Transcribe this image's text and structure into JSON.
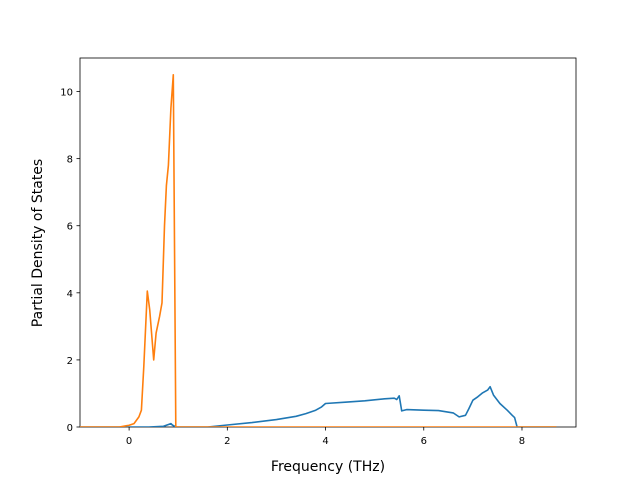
{
  "chart_data": {
    "type": "line",
    "title": "",
    "xlabel": "Frequency (THz)",
    "ylabel": "Partial Density of States",
    "xlim": [
      -1.0,
      9.1
    ],
    "ylim": [
      0,
      11
    ],
    "xticks": [
      0,
      2,
      4,
      6,
      8
    ],
    "yticks": [
      0,
      2,
      4,
      6,
      8,
      10
    ],
    "grid": false,
    "legend": "none",
    "series": [
      {
        "color": "#1f77b4",
        "points": [
          [
            -1.0,
            0.0
          ],
          [
            0.0,
            0.0
          ],
          [
            0.4,
            0.0
          ],
          [
            0.7,
            0.02
          ],
          [
            0.85,
            0.1
          ],
          [
            0.88,
            0.06
          ],
          [
            0.95,
            0.0
          ],
          [
            1.6,
            0.0
          ],
          [
            1.8,
            0.03
          ],
          [
            2.0,
            0.06
          ],
          [
            2.5,
            0.13
          ],
          [
            3.0,
            0.22
          ],
          [
            3.4,
            0.32
          ],
          [
            3.6,
            0.4
          ],
          [
            3.8,
            0.5
          ],
          [
            3.92,
            0.6
          ],
          [
            4.0,
            0.7
          ],
          [
            4.4,
            0.74
          ],
          [
            4.8,
            0.78
          ],
          [
            5.2,
            0.84
          ],
          [
            5.4,
            0.86
          ],
          [
            5.45,
            0.82
          ],
          [
            5.5,
            0.93
          ],
          [
            5.55,
            0.48
          ],
          [
            5.65,
            0.52
          ],
          [
            6.0,
            0.5
          ],
          [
            6.3,
            0.49
          ],
          [
            6.6,
            0.42
          ],
          [
            6.72,
            0.3
          ],
          [
            6.85,
            0.35
          ],
          [
            6.92,
            0.55
          ],
          [
            7.0,
            0.8
          ],
          [
            7.1,
            0.9
          ],
          [
            7.2,
            1.02
          ],
          [
            7.3,
            1.1
          ],
          [
            7.35,
            1.2
          ],
          [
            7.42,
            0.95
          ],
          [
            7.55,
            0.7
          ],
          [
            7.7,
            0.5
          ],
          [
            7.8,
            0.35
          ],
          [
            7.85,
            0.28
          ],
          [
            7.9,
            0.0
          ],
          [
            8.7,
            0.0
          ]
        ]
      },
      {
        "color": "#ff7f0e",
        "points": [
          [
            -1.0,
            0.0
          ],
          [
            -0.2,
            0.0
          ],
          [
            0.0,
            0.05
          ],
          [
            0.1,
            0.1
          ],
          [
            0.2,
            0.3
          ],
          [
            0.25,
            0.5
          ],
          [
            0.3,
            1.8
          ],
          [
            0.37,
            4.05
          ],
          [
            0.42,
            3.5
          ],
          [
            0.5,
            2.0
          ],
          [
            0.55,
            2.8
          ],
          [
            0.62,
            3.3
          ],
          [
            0.67,
            3.7
          ],
          [
            0.72,
            6.0
          ],
          [
            0.76,
            7.2
          ],
          [
            0.8,
            7.8
          ],
          [
            0.85,
            9.5
          ],
          [
            0.9,
            10.5
          ],
          [
            0.95,
            0.0
          ],
          [
            8.7,
            0.0
          ]
        ]
      }
    ]
  }
}
